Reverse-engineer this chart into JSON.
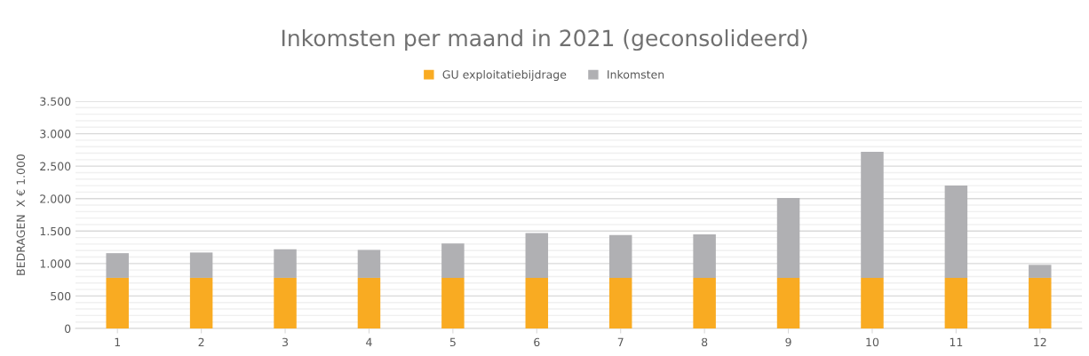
{
  "chart_data": {
    "type": "bar",
    "title": "Inkomsten per maand in 2021 (geconsolideerd)",
    "ylabel": "BEDRAGEN  X € 1.000",
    "categories": [
      "1",
      "2",
      "3",
      "4",
      "5",
      "6",
      "7",
      "8",
      "9",
      "10",
      "11",
      "12"
    ],
    "stacked": true,
    "series": [
      {
        "name": "GU exploitatiebijdrage",
        "color": "#f9ab22",
        "values": [
          780,
          780,
          780,
          780,
          780,
          780,
          780,
          780,
          780,
          780,
          780,
          780
        ]
      },
      {
        "name": "Inkomsten",
        "color": "#b0b0b3",
        "values": [
          380,
          390,
          440,
          430,
          530,
          690,
          660,
          670,
          1230,
          1940,
          1420,
          200
        ]
      }
    ],
    "ylim": [
      0,
      3500
    ],
    "yticks": [
      {
        "value": 0,
        "label": "0"
      },
      {
        "value": 100,
        "label": null
      },
      {
        "value": 200,
        "label": null
      },
      {
        "value": 300,
        "label": null
      },
      {
        "value": 400,
        "label": null
      },
      {
        "value": 500,
        "label": "500"
      },
      {
        "value": 600,
        "label": null
      },
      {
        "value": 700,
        "label": null
      },
      {
        "value": 800,
        "label": null
      },
      {
        "value": 900,
        "label": null
      },
      {
        "value": 1000,
        "label": "1.000"
      },
      {
        "value": 1100,
        "label": null
      },
      {
        "value": 1200,
        "label": null
      },
      {
        "value": 1300,
        "label": null
      },
      {
        "value": 1400,
        "label": null
      },
      {
        "value": 1500,
        "label": "1.500"
      },
      {
        "value": 1600,
        "label": null
      },
      {
        "value": 1700,
        "label": null
      },
      {
        "value": 1800,
        "label": null
      },
      {
        "value": 1900,
        "label": null
      },
      {
        "value": 2000,
        "label": "2.000"
      },
      {
        "value": 2100,
        "label": null
      },
      {
        "value": 2200,
        "label": null
      },
      {
        "value": 2300,
        "label": null
      },
      {
        "value": 2400,
        "label": null
      },
      {
        "value": 2500,
        "label": "2.500"
      },
      {
        "value": 2600,
        "label": null
      },
      {
        "value": 2700,
        "label": null
      },
      {
        "value": 2800,
        "label": null
      },
      {
        "value": 2900,
        "label": null
      },
      {
        "value": 3000,
        "label": "3.000"
      },
      {
        "value": 3100,
        "label": null
      },
      {
        "value": 3200,
        "label": null
      },
      {
        "value": 3300,
        "label": null
      },
      {
        "value": 3400,
        "label": null
      },
      {
        "value": 3500,
        "label": "3.500"
      }
    ],
    "grid": "y",
    "legend": "top"
  }
}
